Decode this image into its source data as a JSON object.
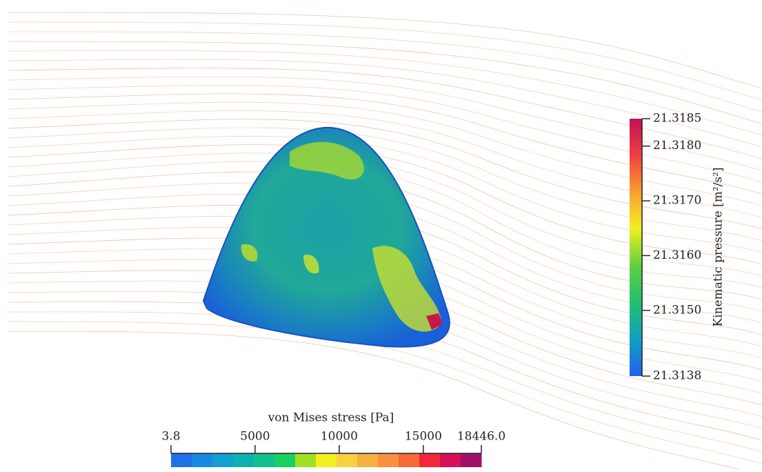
{
  "horizontal_colorbar": {
    "title": "von Mises stress [Pa]",
    "range": [
      3.8,
      {
        "value": 18446.0,
        "label": "18446.0"
      }
    ],
    "ticks": [
      3.8,
      5000,
      10000,
      15000,
      {
        "value": 18446.0,
        "label": "18446.0"
      }
    ],
    "colors": [
      "#2070e8",
      "#1a8ae0",
      "#12a0d0",
      "#10b0b0",
      "#14c090",
      "#18d060",
      "#a0e020",
      "#f4f020",
      "#f8d040",
      "#f8b040",
      "#f89040",
      "#f86838",
      "#f02838",
      "#d81058",
      "#a01068"
    ]
  },
  "vertical_colorbar": {
    "title": "Kinematic pressure [m²/s²]",
    "range": [
      21.3138,
      21.3185
    ],
    "ticks": [
      21.3138,
      {
        "value": 21.315,
        "label": "21.3150"
      },
      {
        "value": 21.316,
        "label": "21.3160"
      },
      {
        "value": 21.317,
        "label": "21.3170"
      },
      {
        "value": 21.318,
        "label": "21.3180"
      },
      21.3185
    ],
    "colors": [
      "#2060f0",
      "#10a0c0",
      "#20c070",
      "#60d040",
      "#f0f020",
      "#f8a030",
      "#f04040",
      "#c0105a"
    ]
  }
}
